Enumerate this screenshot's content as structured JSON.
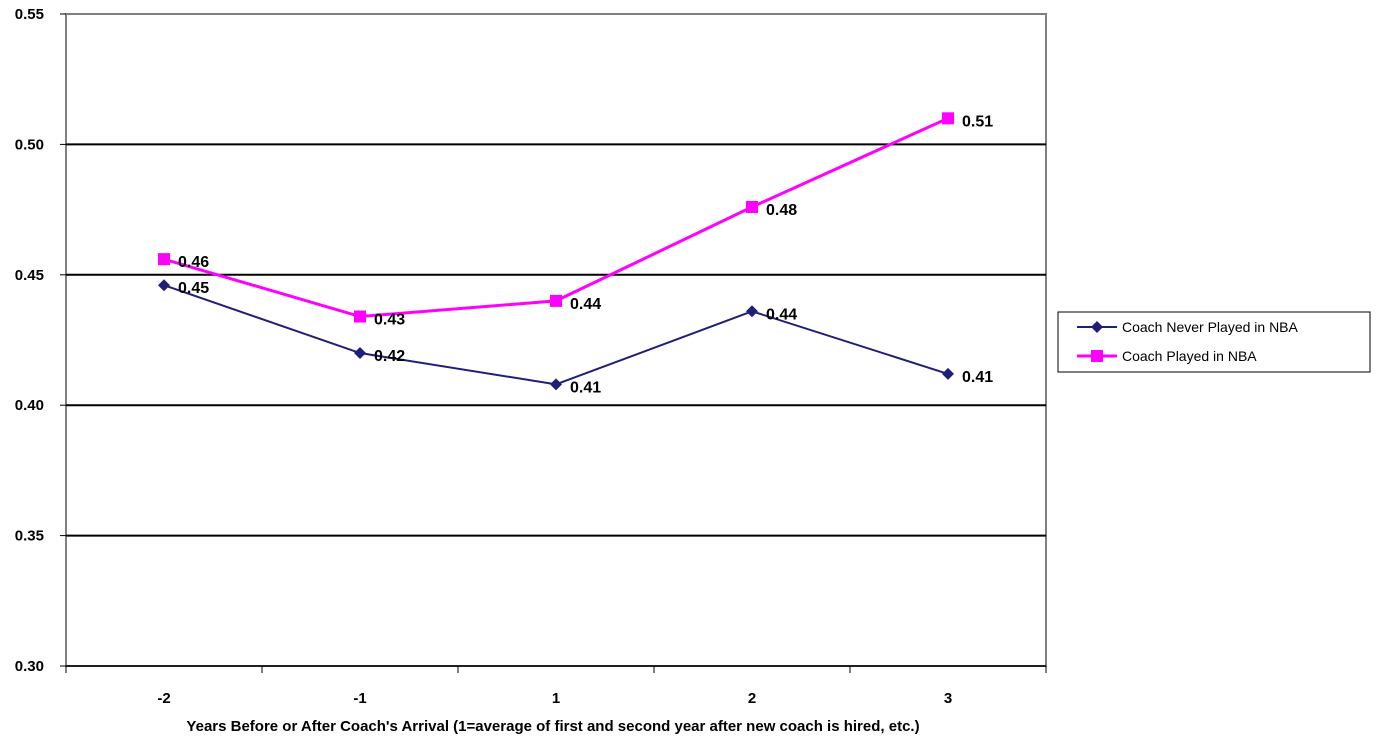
{
  "chart_data": {
    "type": "line",
    "title": "",
    "xlabel": "Years Before or After Coach's Arrival (1=average of first and second year after new coach is hired, etc.)",
    "ylabel": "",
    "categories": [
      "-2",
      "-1",
      "1",
      "2",
      "3"
    ],
    "ylim": [
      0.3,
      0.55
    ],
    "yticks": [
      "0.30",
      "0.35",
      "0.40",
      "0.45",
      "0.50",
      "0.55"
    ],
    "grid": "horizontal",
    "legend_position": "right",
    "series": [
      {
        "name": "Coach Never Played in NBA",
        "color": "#1f1f7a",
        "marker": "diamond",
        "values": [
          0.446,
          0.42,
          0.408,
          0.436,
          0.412
        ],
        "labels": [
          "0.45",
          "0.42",
          "0.41",
          "0.44",
          "0.41"
        ]
      },
      {
        "name": "Coach Played in NBA",
        "color": "#ff00ff",
        "marker": "square",
        "values": [
          0.456,
          0.434,
          0.44,
          0.476,
          0.51
        ],
        "labels": [
          "0.46",
          "0.43",
          "0.44",
          "0.48",
          "0.51"
        ]
      }
    ]
  }
}
